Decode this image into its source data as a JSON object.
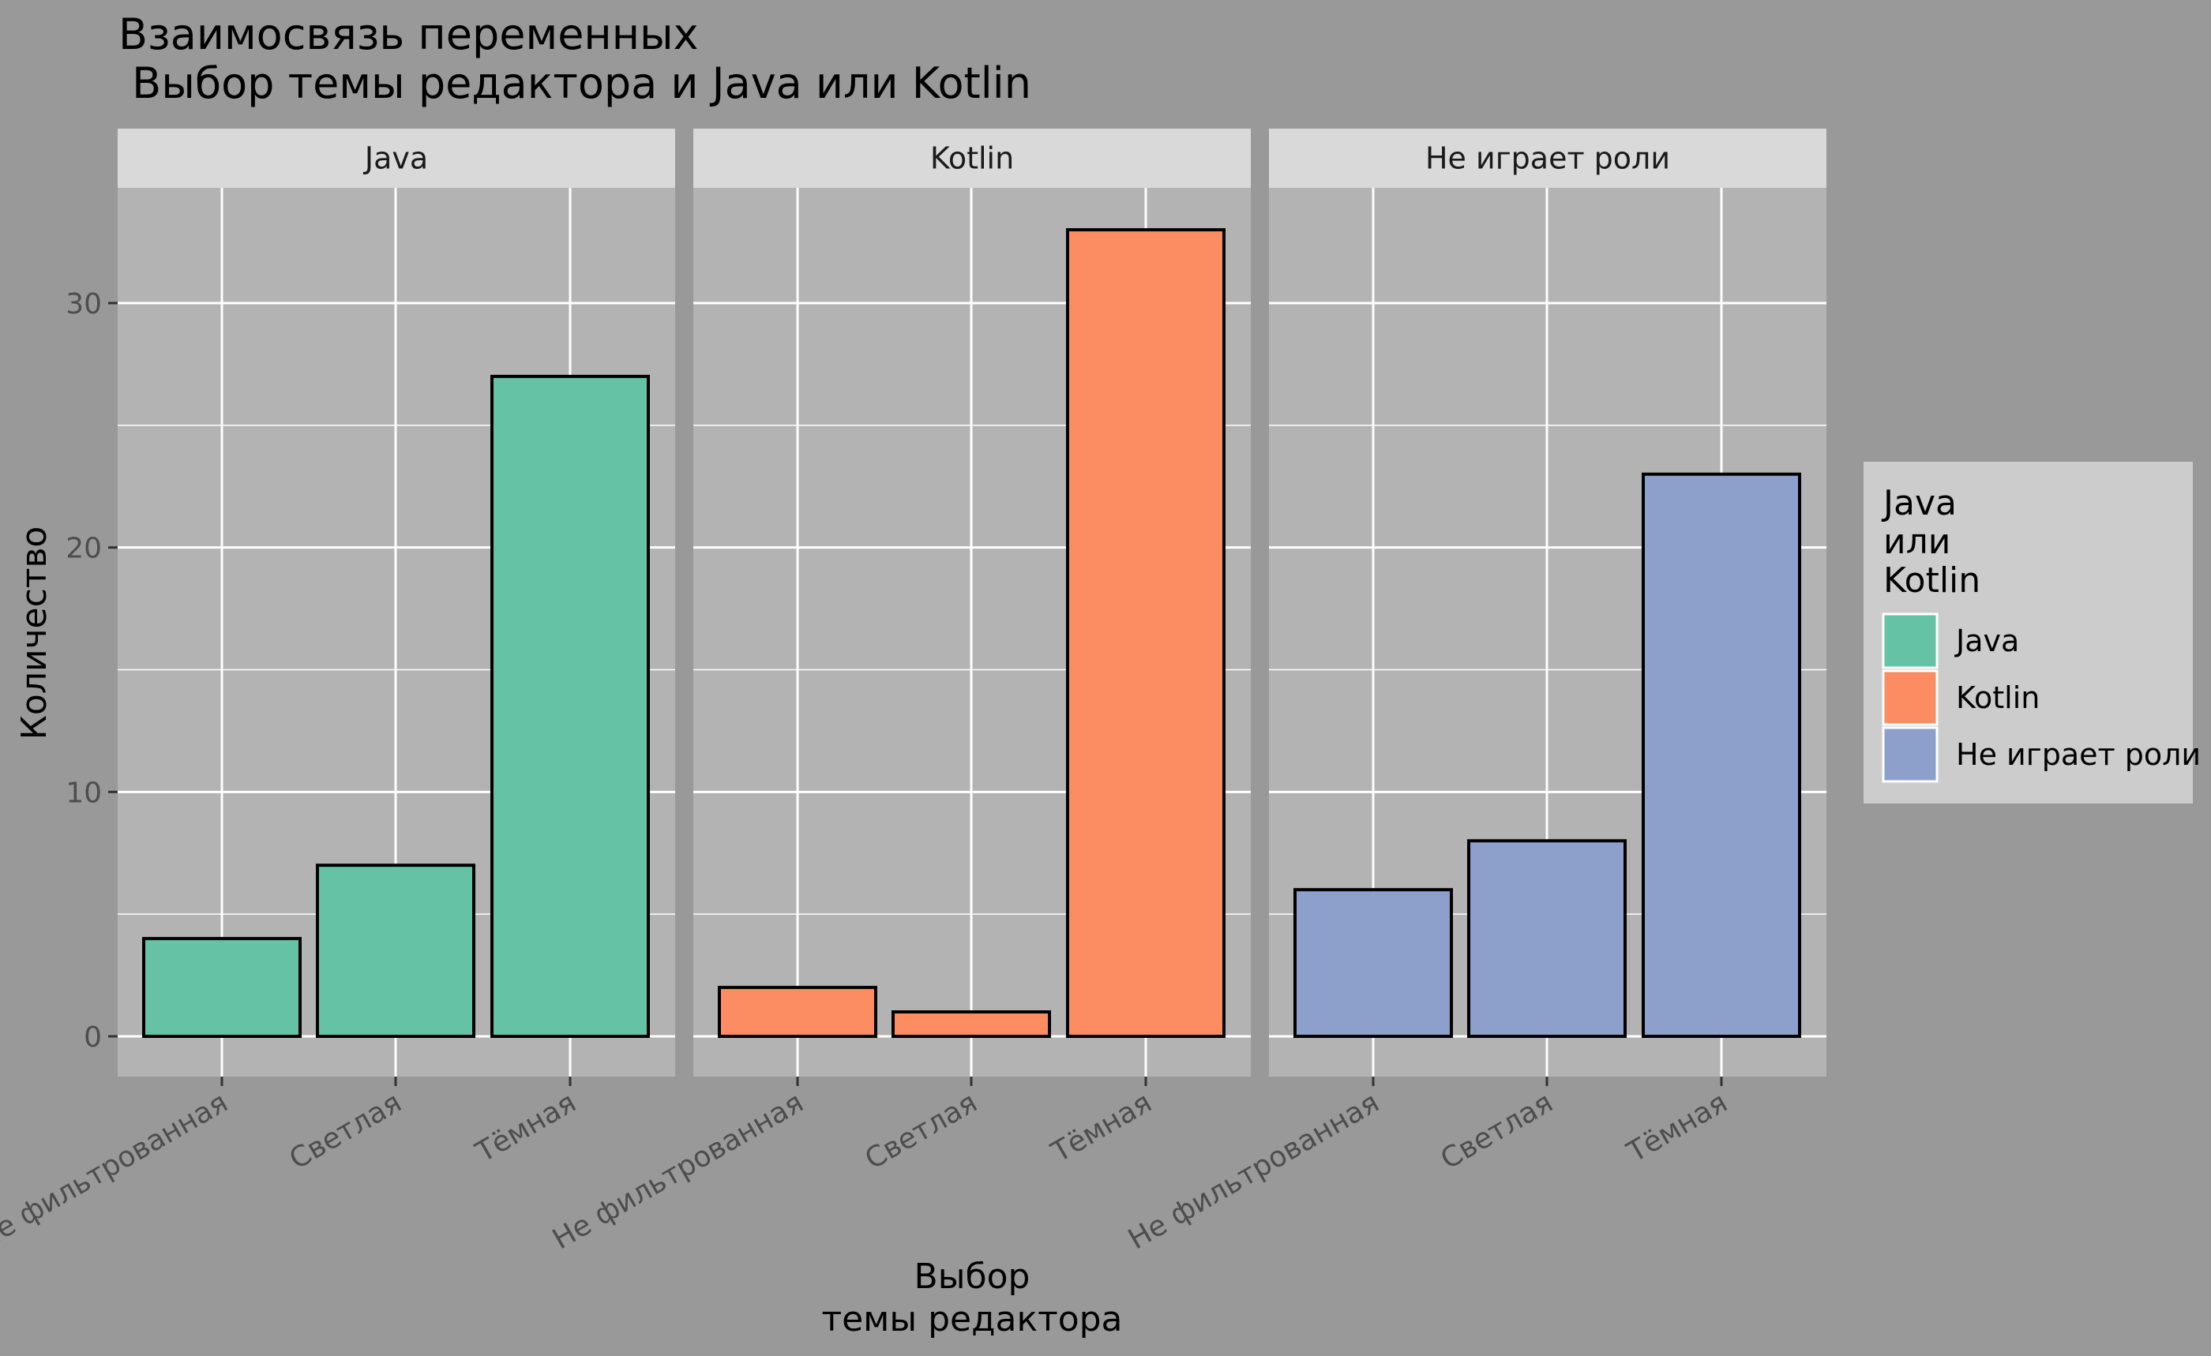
{
  "chart_data": {
    "type": "bar",
    "title_lines": [
      "Взаимосвязь переменных",
      " Выбор темы редактора и Java или Kotlin"
    ],
    "xlabel_lines": [
      "Выбор",
      "темы редактора"
    ],
    "ylabel": "Количество",
    "ylim": [
      0,
      34
    ],
    "yticks": [
      0,
      10,
      20,
      30
    ],
    "grid": true,
    "categories": [
      "Не фильтрованная",
      "Светлая",
      "Тёмная"
    ],
    "facets": [
      {
        "name": "Java",
        "color": "#66c2a5",
        "values": [
          4,
          7,
          27
        ]
      },
      {
        "name": "Kotlin",
        "color": "#fc8d62",
        "values": [
          2,
          1,
          33
        ]
      },
      {
        "name": "Не играет роли",
        "color": "#8da0cb",
        "values": [
          6,
          8,
          23
        ]
      }
    ],
    "legend": {
      "title_lines": [
        "Java",
        "или",
        "Kotlin"
      ],
      "placement": "right"
    },
    "colors": {
      "background": "#999999",
      "panel": "#b3b3b3",
      "strip": "#d9d9d9",
      "legend_bg": "#cccccc",
      "grid": "#ffffff"
    }
  }
}
